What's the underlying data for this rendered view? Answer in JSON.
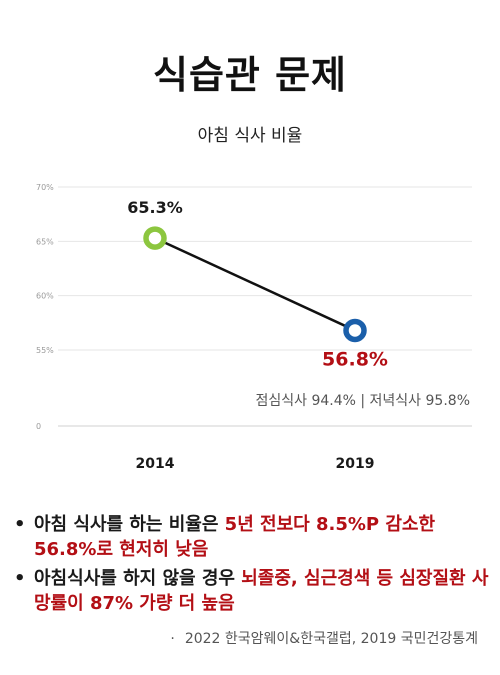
{
  "header": {
    "title": "식습관 문제",
    "subtitle": "아침 식사 비율"
  },
  "chart_data": {
    "type": "line",
    "title": "아침 식사 비율",
    "categories": [
      "2014",
      "2019"
    ],
    "series": [
      {
        "values": [
          65.3,
          56.8
        ],
        "point_labels": [
          "65.3%",
          "56.8%"
        ],
        "point_colors": [
          "#8cc63f",
          "#1b5faa"
        ],
        "label_colors": [
          "#1a1a1a",
          "#b30f15"
        ]
      }
    ],
    "y_ticks": [
      {
        "value": 70,
        "label": "70%"
      },
      {
        "value": 65,
        "label": "65%"
      },
      {
        "value": 60,
        "label": "60%"
      },
      {
        "value": 55,
        "label": "55%"
      },
      {
        "value": 0,
        "label": "0"
      }
    ],
    "ylim": [
      0,
      70
    ],
    "axis_break": true,
    "grid": true,
    "annotation": "점심식사 94.4% | 저녁식사 95.8%"
  },
  "notes": [
    {
      "plain": "아침 식사를 하는 비율은 ",
      "highlight": "5년 전보다 8.5%P 감소한 56.8%로 현저히 낮음"
    },
    {
      "plain": "아침식사를 하지 않을 경우 ",
      "highlight": "뇌졸중, 심근경색 등 심장질환 사망률이 87% 가량 더 높음"
    }
  ],
  "bullet_symbol": "•",
  "source": {
    "mark": "·",
    "text": "2022 한국암웨이&한국갤럽, 2019 국민건강통계"
  },
  "colors": {
    "accent_red": "#b30f15",
    "point_2014": "#8cc63f",
    "point_2019": "#1b5faa",
    "grid": "#e6e6e6"
  }
}
